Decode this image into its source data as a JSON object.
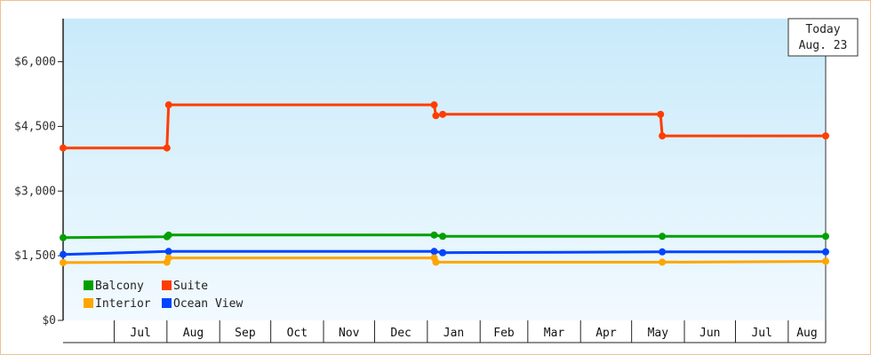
{
  "chart_data": {
    "type": "line",
    "title": "",
    "xlabel": "",
    "ylabel": "",
    "ylim": [
      0,
      7000
    ],
    "y_ticks": [
      {
        "value": 0,
        "label": "$0"
      },
      {
        "value": 1500,
        "label": "$1,500"
      },
      {
        "value": 3000,
        "label": "$3,000"
      },
      {
        "value": 4500,
        "label": "$4,500"
      },
      {
        "value": 6000,
        "label": "$6,000"
      }
    ],
    "x_range": [
      "2024-06-01",
      "2025-08-23"
    ],
    "x_ticks": [
      {
        "date": "2024-07-01",
        "label": "Jul"
      },
      {
        "date": "2024-08-01",
        "label": "Aug"
      },
      {
        "date": "2024-09-01",
        "label": "Sep"
      },
      {
        "date": "2024-10-01",
        "label": "Oct"
      },
      {
        "date": "2024-11-01",
        "label": "Nov"
      },
      {
        "date": "2024-12-01",
        "label": "Dec"
      },
      {
        "date": "2025-01-01",
        "label": "Jan"
      },
      {
        "date": "2025-02-01",
        "label": "Feb"
      },
      {
        "date": "2025-03-01",
        "label": "Mar"
      },
      {
        "date": "2025-04-01",
        "label": "Apr"
      },
      {
        "date": "2025-05-01",
        "label": "May"
      },
      {
        "date": "2025-06-01",
        "label": "Jun"
      },
      {
        "date": "2025-07-01",
        "label": "Jul"
      },
      {
        "date": "2025-08-01",
        "label": "Aug"
      }
    ],
    "step": true,
    "grid": "none",
    "legend_position": "bottom-left",
    "annotation": {
      "line1": "Today",
      "line2": "Aug. 23"
    },
    "series": [
      {
        "name": "Suite",
        "color": "#ff3d00",
        "points": [
          {
            "x": "2024-06-01",
            "y": 4000
          },
          {
            "x": "2024-08-01",
            "y": 4000
          },
          {
            "x": "2024-08-02",
            "y": 5000
          },
          {
            "x": "2025-01-05",
            "y": 5000
          },
          {
            "x": "2025-01-06",
            "y": 4750
          },
          {
            "x": "2025-01-10",
            "y": 4780
          },
          {
            "x": "2025-05-18",
            "y": 4780
          },
          {
            "x": "2025-05-19",
            "y": 4280
          },
          {
            "x": "2025-08-23",
            "y": 4280
          }
        ]
      },
      {
        "name": "Balcony",
        "color": "#00a000",
        "points": [
          {
            "x": "2024-06-01",
            "y": 1920
          },
          {
            "x": "2024-08-01",
            "y": 1940
          },
          {
            "x": "2024-08-02",
            "y": 1980
          },
          {
            "x": "2025-01-05",
            "y": 1980
          },
          {
            "x": "2025-01-10",
            "y": 1950
          },
          {
            "x": "2025-05-19",
            "y": 1950
          },
          {
            "x": "2025-08-23",
            "y": 1950
          }
        ]
      },
      {
        "name": "Ocean View",
        "color": "#0044ff",
        "points": [
          {
            "x": "2024-06-01",
            "y": 1530
          },
          {
            "x": "2024-08-02",
            "y": 1600
          },
          {
            "x": "2025-01-05",
            "y": 1600
          },
          {
            "x": "2025-01-10",
            "y": 1570
          },
          {
            "x": "2025-05-19",
            "y": 1590
          },
          {
            "x": "2025-08-23",
            "y": 1590
          }
        ]
      },
      {
        "name": "Interior",
        "color": "#ffa500",
        "points": [
          {
            "x": "2024-06-01",
            "y": 1340
          },
          {
            "x": "2024-08-01",
            "y": 1350
          },
          {
            "x": "2024-08-02",
            "y": 1450
          },
          {
            "x": "2025-01-05",
            "y": 1450
          },
          {
            "x": "2025-01-06",
            "y": 1350
          },
          {
            "x": "2025-05-19",
            "y": 1350
          },
          {
            "x": "2025-08-23",
            "y": 1370
          }
        ]
      }
    ],
    "legend": [
      {
        "name": "Balcony",
        "color": "#00a000"
      },
      {
        "name": "Suite",
        "color": "#ff3d00"
      },
      {
        "name": "Interior",
        "color": "#ffa500"
      },
      {
        "name": "Ocean View",
        "color": "#0044ff"
      }
    ]
  }
}
